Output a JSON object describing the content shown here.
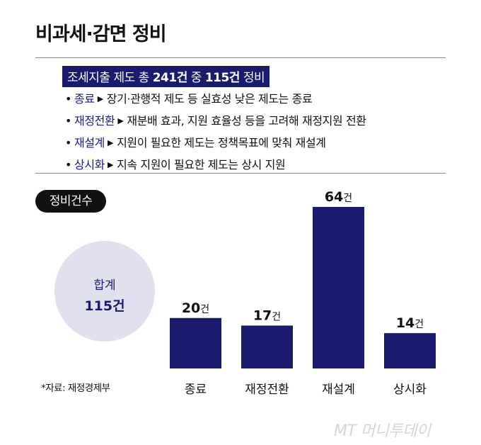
{
  "title": "비과세·감면 정비",
  "headline": {
    "prefix": "조세지출 제도 총 ",
    "total_count": "241건",
    "middle": " 중 ",
    "fixed_count": "115건",
    "suffix": " 정비"
  },
  "bullets": [
    {
      "key": "종료",
      "desc": "장기·관행적 제도 등 실효성 낮은 제도는 종료"
    },
    {
      "key": "재정전환",
      "desc": "재분배 효과, 지원 효율성 등을 고려해 재정지원 전환"
    },
    {
      "key": "재설계",
      "desc": "지원이 필요한 제도는 정책목표에 맞춰 재설계"
    },
    {
      "key": "상시화",
      "desc": "지속 지원이 필요한 제도는 상시 지원"
    }
  ],
  "pill_label": "정비건수",
  "total": {
    "label": "합계",
    "value": "115건"
  },
  "source": "*자료: 재정경제부",
  "watermark": "MT 머니투데이",
  "colors": {
    "bar": "#1a1a6e",
    "headline_bg": "#1a1a6e",
    "circle": "#e0e0ee",
    "key_text": "#1a1a8c"
  },
  "chart_data": {
    "type": "bar",
    "categories": [
      "종료",
      "재정전환",
      "재설계",
      "상시화"
    ],
    "values": [
      20,
      17,
      64,
      14
    ],
    "value_unit": "건",
    "ylim": [
      0,
      64
    ],
    "grid": false,
    "legend": "none",
    "xlabel": "",
    "ylabel": ""
  }
}
